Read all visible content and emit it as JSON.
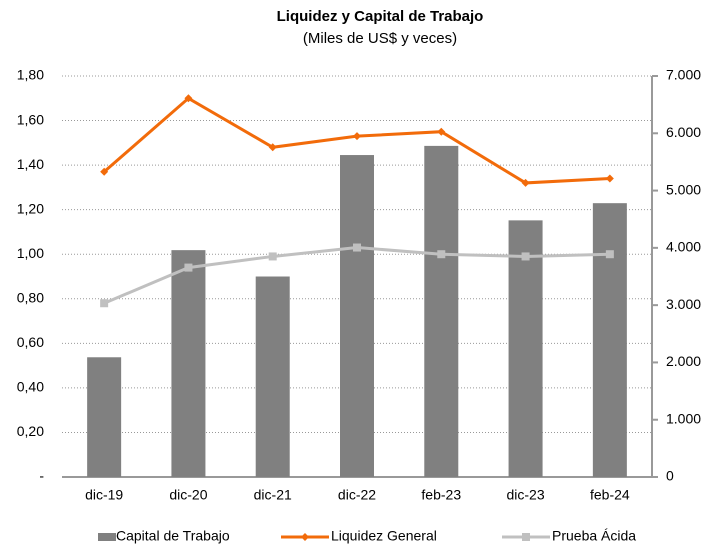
{
  "chart_data": {
    "type": "bar",
    "title": "Liquidez y Capital de Trabajo",
    "subtitle": "(Miles de US$ y veces)",
    "categories": [
      "dic-19",
      "dic-20",
      "dic-21",
      "dic-22",
      "feb-23",
      "dic-23",
      "feb-24"
    ],
    "series": [
      {
        "name": "Capital de Trabajo",
        "type": "bar",
        "axis": "y2",
        "color": "#808080",
        "values": [
          2090,
          3960,
          3500,
          5620,
          5780,
          4480,
          4780
        ]
      },
      {
        "name": "Liquidez General",
        "type": "line",
        "color": "#f26b0a",
        "values": [
          1.37,
          1.7,
          1.48,
          1.53,
          1.55,
          1.32,
          1.34
        ]
      },
      {
        "name": "Prueba Ácida",
        "type": "line",
        "color": "#c0c0c0",
        "values": [
          0.78,
          0.94,
          0.99,
          1.03,
          1.0,
          0.99,
          1.0
        ]
      }
    ],
    "ylim": [
      0,
      1.8
    ],
    "yticks": [
      {
        "value": 0,
        "label": "-"
      },
      {
        "value": 0.2,
        "label": "0,20"
      },
      {
        "value": 0.4,
        "label": "0,40"
      },
      {
        "value": 0.6,
        "label": "0,60"
      },
      {
        "value": 0.8,
        "label": "0,80"
      },
      {
        "value": 1.0,
        "label": "1,00"
      },
      {
        "value": 1.2,
        "label": "1,20"
      },
      {
        "value": 1.4,
        "label": "1,40"
      },
      {
        "value": 1.6,
        "label": "1,60"
      },
      {
        "value": 1.8,
        "label": "1,80"
      }
    ],
    "y2lim": [
      0,
      7000
    ],
    "y2ticks": [
      0,
      {
        "value": 1000,
        "label": "1.000"
      },
      {
        "value": 2000,
        "label": "2.000"
      },
      {
        "value": 3000,
        "label": "3.000"
      },
      {
        "value": 4000,
        "label": "4.000"
      },
      {
        "value": 5000,
        "label": "5.000"
      },
      {
        "value": 6000,
        "label": "6.000"
      },
      {
        "value": 7000,
        "label": "7.000"
      }
    ],
    "grid": true,
    "legend": "bottom"
  }
}
